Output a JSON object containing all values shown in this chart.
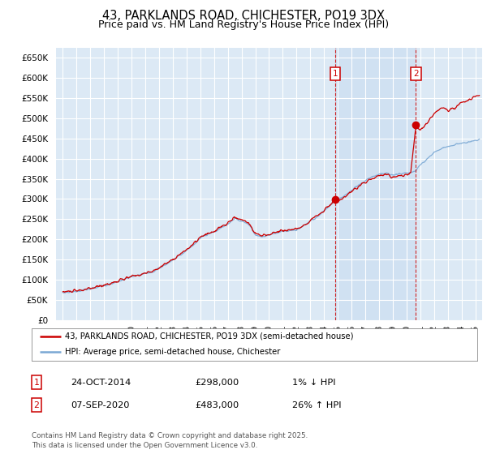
{
  "title": "43, PARKLANDS ROAD, CHICHESTER, PO19 3DX",
  "subtitle": "Price paid vs. HM Land Registry's House Price Index (HPI)",
  "ylim": [
    0,
    675000
  ],
  "yticks": [
    0,
    50000,
    100000,
    150000,
    200000,
    250000,
    300000,
    350000,
    400000,
    450000,
    500000,
    550000,
    600000,
    650000
  ],
  "xlim_start": 1994.5,
  "xlim_end": 2025.5,
  "background_color": "#dce9f5",
  "plot_bg_color": "#dce9f5",
  "shaded_color": "#c8ddf0",
  "grid_color": "#ffffff",
  "red_line_color": "#cc0000",
  "blue_line_color": "#7aa8d4",
  "transaction1_x": 2014.81,
  "transaction1_y": 298000,
  "transaction1_label": "1",
  "transaction2_x": 2020.68,
  "transaction2_y": 483000,
  "transaction2_label": "2",
  "legend_entry1": "43, PARKLANDS ROAD, CHICHESTER, PO19 3DX (semi-detached house)",
  "legend_entry2": "HPI: Average price, semi-detached house, Chichester",
  "annotation1_date": "24-OCT-2014",
  "annotation1_price": "£298,000",
  "annotation1_hpi": "1% ↓ HPI",
  "annotation2_date": "07-SEP-2020",
  "annotation2_price": "£483,000",
  "annotation2_hpi": "26% ↑ HPI",
  "footer": "Contains HM Land Registry data © Crown copyright and database right 2025.\nThis data is licensed under the Open Government Licence v3.0.",
  "title_fontsize": 10.5,
  "subtitle_fontsize": 9,
  "tick_fontsize": 7.5
}
